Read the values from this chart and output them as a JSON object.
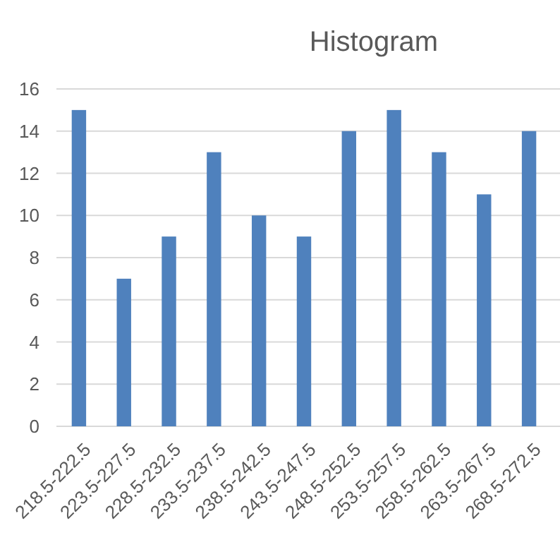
{
  "chart_data": {
    "type": "bar",
    "title": "Histogram",
    "categories": [
      "218.5-222.5",
      "223.5-227.5",
      "228.5-232.5",
      "233.5-237.5",
      "238.5-242.5",
      "243.5-247.5",
      "248.5-252.5",
      "253.5-257.5",
      "258.5-262.5",
      "263.5-267.5",
      "268.5-272.5"
    ],
    "values": [
      15,
      7,
      9,
      13,
      10,
      9,
      14,
      15,
      13,
      11,
      14
    ],
    "color": "#4f81bd",
    "ylim": [
      0,
      16
    ],
    "yticks": [
      0,
      2,
      4,
      6,
      8,
      10,
      12,
      14,
      16
    ],
    "grid": "y"
  }
}
